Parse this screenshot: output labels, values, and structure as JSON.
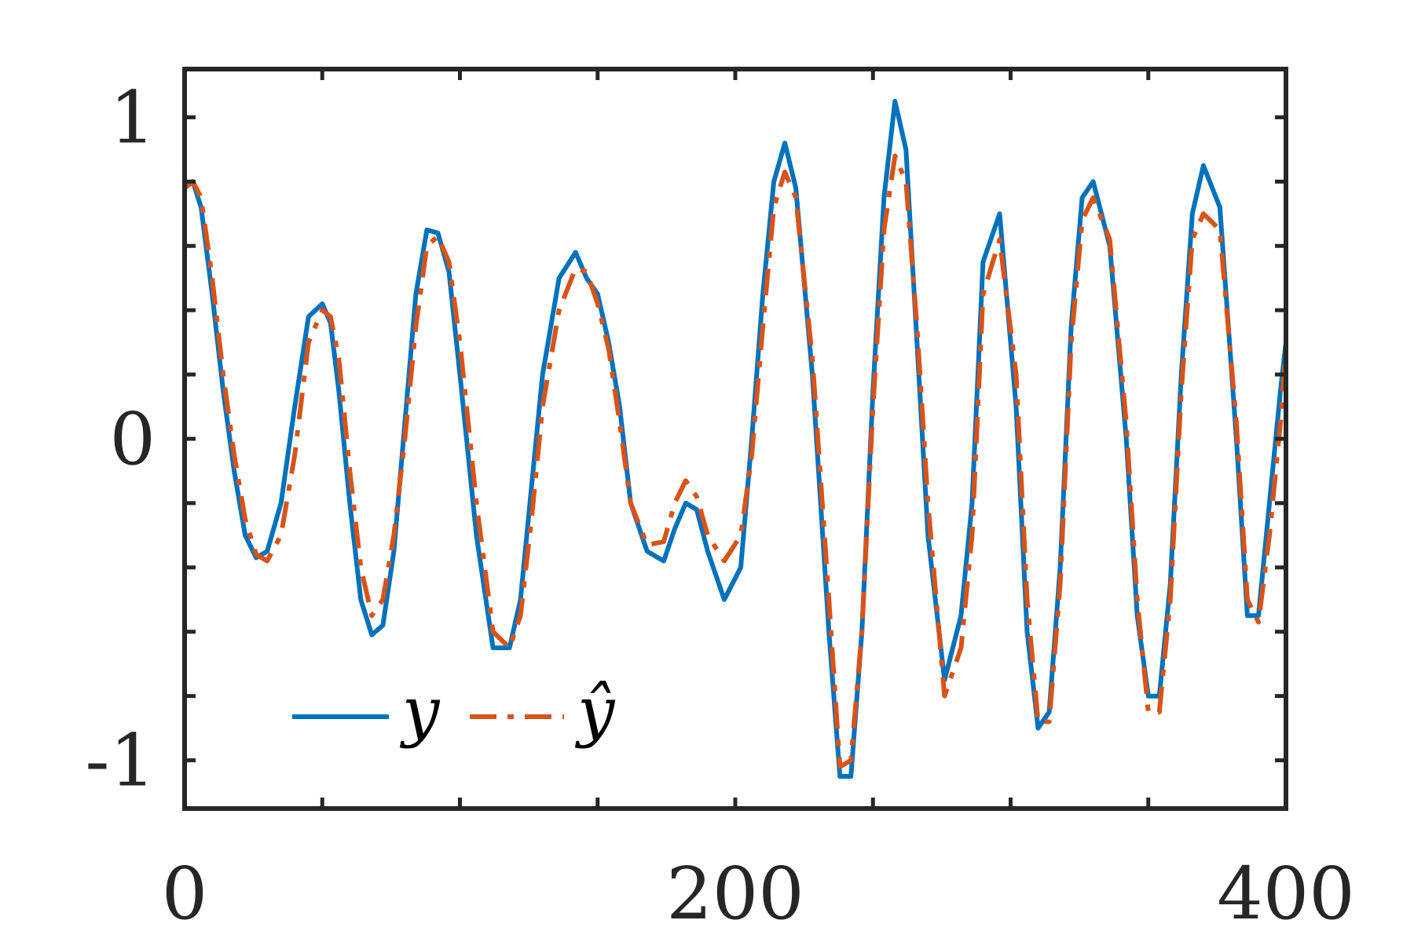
{
  "chart_data": {
    "type": "line",
    "title": "",
    "xlabel": "",
    "ylabel": "",
    "xlim": [
      0,
      400
    ],
    "ylim": [
      -1.15,
      1.15
    ],
    "grid": false,
    "legend_placement": "bottom-left",
    "x_ticks": [
      {
        "value": 0,
        "label": "0"
      },
      {
        "value": 200,
        "label": "200"
      },
      {
        "value": 400,
        "label": "400"
      }
    ],
    "y_ticks": [
      {
        "value": 1,
        "label": "1"
      },
      {
        "value": 0,
        "label": "0"
      },
      {
        "value": -1,
        "label": "-1"
      }
    ],
    "x_minor_ticks": [
      50,
      100,
      150,
      250,
      300,
      350
    ],
    "y_minor_ticks": [
      -0.8,
      -0.6,
      -0.4,
      -0.2,
      0.2,
      0.4,
      0.6,
      0.8
    ],
    "series": [
      {
        "name": "y",
        "color": "#0072BD",
        "style": "solid",
        "x": [
          0,
          3,
          6,
          10,
          14,
          18,
          22,
          26,
          30,
          35,
          40,
          45,
          50,
          53,
          56,
          60,
          64,
          68,
          72,
          76,
          80,
          84,
          88,
          92,
          96,
          100,
          106,
          112,
          118,
          122,
          126,
          130,
          136,
          142,
          146,
          150,
          154,
          158,
          162,
          168,
          174,
          178,
          182,
          186,
          190,
          196,
          202,
          206,
          210,
          214,
          218,
          222,
          228,
          234,
          238,
          242,
          246,
          250,
          254,
          258,
          262,
          266,
          270,
          276,
          282,
          286,
          290,
          296,
          302,
          306,
          310,
          314,
          318,
          322,
          326,
          330,
          336,
          342,
          346,
          350,
          354,
          358,
          362,
          366,
          370,
          376,
          382,
          386,
          390,
          394,
          398,
          400
        ],
        "values": [
          0.78,
          0.8,
          0.72,
          0.45,
          0.15,
          -0.1,
          -0.3,
          -0.37,
          -0.35,
          -0.2,
          0.1,
          0.38,
          0.42,
          0.36,
          0.15,
          -0.2,
          -0.5,
          -0.61,
          -0.58,
          -0.35,
          0.05,
          0.45,
          0.65,
          0.64,
          0.52,
          0.2,
          -0.3,
          -0.65,
          -0.65,
          -0.5,
          -0.15,
          0.2,
          0.5,
          0.58,
          0.5,
          0.45,
          0.3,
          0.1,
          -0.2,
          -0.35,
          -0.38,
          -0.28,
          -0.2,
          -0.22,
          -0.35,
          -0.5,
          -0.4,
          0.0,
          0.45,
          0.8,
          0.92,
          0.78,
          0.2,
          -0.6,
          -1.05,
          -1.05,
          -0.6,
          0.15,
          0.75,
          1.05,
          0.9,
          0.3,
          -0.3,
          -0.75,
          -0.55,
          -0.2,
          0.55,
          0.7,
          0.1,
          -0.6,
          -0.9,
          -0.85,
          -0.4,
          0.35,
          0.75,
          0.8,
          0.6,
          0.0,
          -0.55,
          -0.8,
          -0.8,
          -0.45,
          0.2,
          0.7,
          0.85,
          0.72,
          0.0,
          -0.55,
          -0.55,
          -0.2,
          0.15,
          0.3
        ],
        "note": ""
      },
      {
        "name": "ŷ",
        "color": "#D95319",
        "style": "dashdot",
        "x": [
          0,
          3,
          6,
          10,
          14,
          18,
          22,
          26,
          30,
          35,
          40,
          45,
          50,
          53,
          56,
          60,
          64,
          68,
          72,
          76,
          80,
          84,
          88,
          92,
          96,
          100,
          106,
          112,
          118,
          122,
          126,
          130,
          136,
          142,
          146,
          150,
          154,
          158,
          162,
          168,
          174,
          178,
          182,
          186,
          190,
          196,
          202,
          206,
          210,
          214,
          218,
          222,
          228,
          234,
          238,
          242,
          246,
          250,
          254,
          258,
          262,
          266,
          270,
          276,
          282,
          286,
          290,
          296,
          302,
          306,
          310,
          314,
          318,
          322,
          326,
          330,
          336,
          342,
          346,
          350,
          354,
          358,
          362,
          366,
          370,
          376,
          382,
          386,
          390,
          394,
          398,
          400
        ],
        "values": [
          0.78,
          0.8,
          0.75,
          0.5,
          0.2,
          -0.05,
          -0.25,
          -0.36,
          -0.38,
          -0.3,
          -0.05,
          0.3,
          0.4,
          0.38,
          0.25,
          -0.1,
          -0.4,
          -0.55,
          -0.5,
          -0.3,
          0.0,
          0.35,
          0.6,
          0.63,
          0.55,
          0.3,
          -0.2,
          -0.6,
          -0.65,
          -0.55,
          -0.25,
          0.1,
          0.4,
          0.53,
          0.52,
          0.42,
          0.28,
          0.05,
          -0.2,
          -0.33,
          -0.32,
          -0.2,
          -0.13,
          -0.18,
          -0.3,
          -0.38,
          -0.3,
          -0.05,
          0.35,
          0.72,
          0.83,
          0.75,
          0.25,
          -0.5,
          -1.02,
          -1.0,
          -0.6,
          0.1,
          0.65,
          0.88,
          0.8,
          0.35,
          -0.2,
          -0.8,
          -0.65,
          -0.3,
          0.45,
          0.62,
          0.2,
          -0.5,
          -0.88,
          -0.88,
          -0.45,
          0.3,
          0.68,
          0.75,
          0.62,
          0.05,
          -0.5,
          -0.85,
          -0.85,
          -0.5,
          0.15,
          0.62,
          0.7,
          0.65,
          0.05,
          -0.5,
          -0.57,
          -0.3,
          0.05,
          0.28
        ],
        "note": ""
      }
    ]
  },
  "legend": {
    "entries": [
      {
        "label": "y",
        "color": "#0072BD",
        "style": "solid"
      },
      {
        "label": "ŷ",
        "color": "#D95319",
        "style": "dashdot"
      }
    ]
  },
  "colors": {
    "axis": "#262626",
    "background": "#ffffff"
  }
}
